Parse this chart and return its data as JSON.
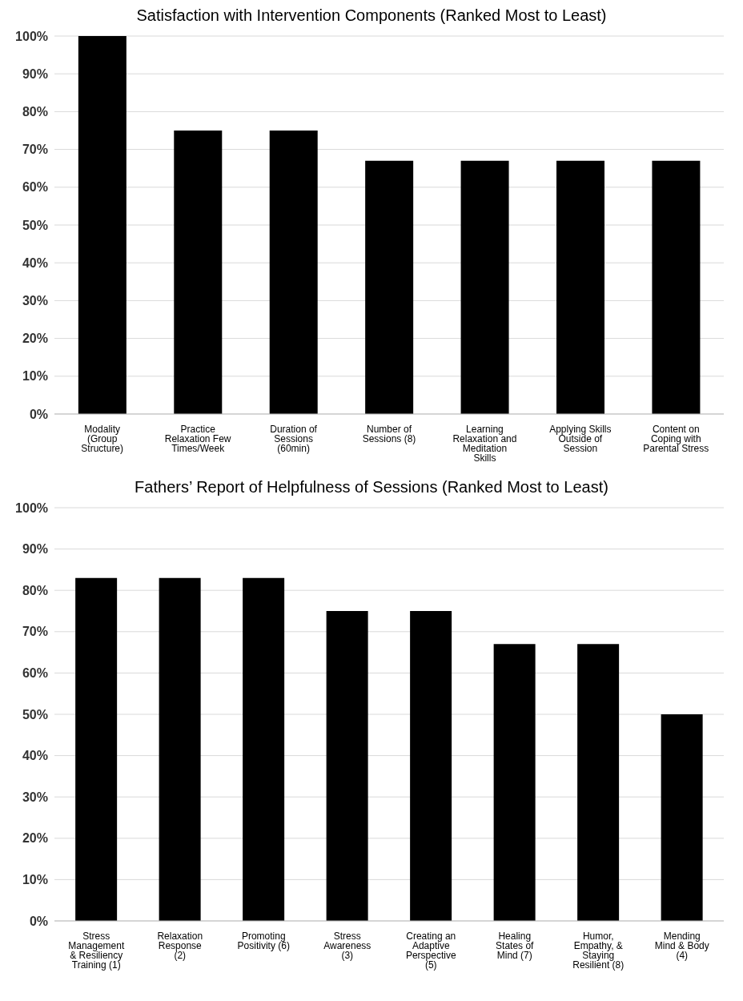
{
  "chart_data": [
    {
      "type": "bar",
      "title": "Satisfaction with Intervention Components (Ranked Most to Least)",
      "categories": [
        "Modality (Group Structure)",
        "Practice Relaxation Few Times/Week",
        "Duration of Sessions (60min)",
        "Number of Sessions (8)",
        "Learning Relaxation and Meditation Skills",
        "Applying Skills Outside of Session",
        "Content on Coping with Parental Stress"
      ],
      "values": [
        100,
        75,
        75,
        67,
        67,
        67,
        67
      ],
      "color": "#000000",
      "ylim": [
        0,
        100
      ],
      "yticks": [
        {
          "value": 0,
          "label": "0%"
        },
        {
          "value": 10,
          "label": "10%"
        },
        {
          "value": 20,
          "label": "20%"
        },
        {
          "value": 30,
          "label": "30%"
        },
        {
          "value": 40,
          "label": "40%"
        },
        {
          "value": 50,
          "label": "50%"
        },
        {
          "value": 60,
          "label": "60%"
        },
        {
          "value": 70,
          "label": "70%"
        },
        {
          "value": 80,
          "label": "80%"
        },
        {
          "value": 90,
          "label": "90%"
        },
        {
          "value": 100,
          "label": "100%"
        }
      ],
      "grid": "y"
    },
    {
      "type": "bar",
      "title": "Fathers’ Report of Helpfulness of Sessions (Ranked Most to Least)",
      "categories": [
        "Stress Management & Resiliency Training (1)",
        "Relaxation Response (2)",
        "Promoting Positivity (6)",
        "Stress Awareness (3)",
        "Creating an Adaptive Perspective (5)",
        "Healing States of Mind (7)",
        "Humor, Empathy, & Staying Resilient (8)",
        "Mending Mind & Body (4)"
      ],
      "values": [
        83,
        83,
        83,
        75,
        75,
        67,
        67,
        50
      ],
      "color": "#000000",
      "ylim": [
        0,
        100
      ],
      "yticks": [
        {
          "value": 0,
          "label": "0%"
        },
        {
          "value": 10,
          "label": "10%"
        },
        {
          "value": 20,
          "label": "20%"
        },
        {
          "value": 30,
          "label": "30%"
        },
        {
          "value": 40,
          "label": "40%"
        },
        {
          "value": 50,
          "label": "50%"
        },
        {
          "value": 60,
          "label": "60%"
        },
        {
          "value": 70,
          "label": "70%"
        },
        {
          "value": 80,
          "label": "80%"
        },
        {
          "value": 90,
          "label": "90%"
        },
        {
          "value": 100,
          "label": "100%"
        }
      ],
      "grid": "y"
    }
  ]
}
